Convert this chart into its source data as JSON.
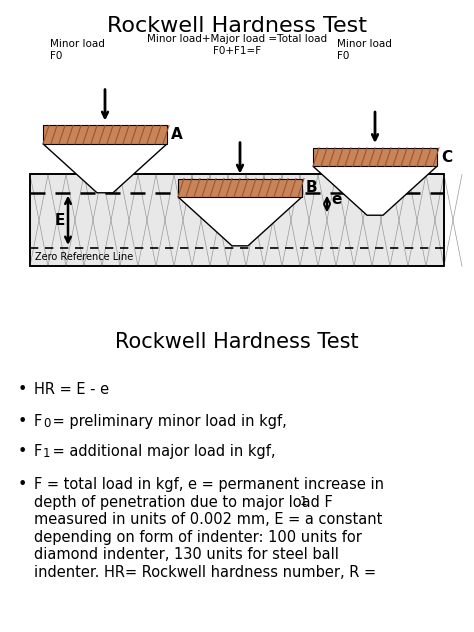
{
  "title_top": "Rockwell Hardness Test",
  "title_bottom": "Rockwell Hardness Test",
  "bg_color": "#ffffff",
  "indenter_color": "#c8855a",
  "indenter_hatch_color": "#a0522d",
  "material_bg": "#e8e8e8",
  "material_line_color": "#aaaaaa",
  "label_A": "A",
  "label_B": "B",
  "label_C": "C",
  "label_E": "E",
  "label_e": "e",
  "minor_load_left": "Minor load\nF0",
  "minor_load_right": "Minor load\nF0",
  "total_load_text": "Minor load+Major load =Total load\nF0+F1=F",
  "zero_ref_text": "Zero Reference Line",
  "diagram_border": "#cccccc",
  "bullet_line1": "HR = E - e",
  "bullet_line2_pre": "F",
  "bullet_line2_sub": "0",
  "bullet_line2_post": " = preliminary minor load in kgf,",
  "bullet_line3_pre": "F",
  "bullet_line3_sub": "1",
  "bullet_line3_post": " = additional major load in kgf,",
  "bullet_line4": "F = total load in kgf, e = permanent increase in\ndepth of penetration due to major load F",
  "bullet_line4_sub": "1",
  "bullet_line4_end": "\nmeasured in units of 0.002 mm, E = a constant\ndepending on form of indenter: 100 units for\ndiamond indenter, 130 units for steel ball\nindenter. HR= Rockwell hardness number, R ="
}
